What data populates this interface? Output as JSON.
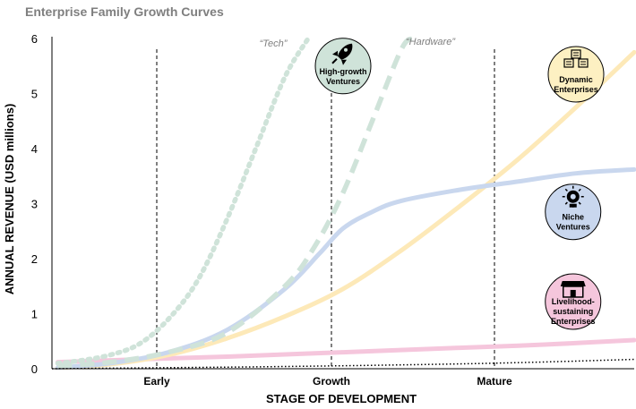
{
  "chart_data": {
    "type": "line",
    "title": "Enterprise Family Growth Curves",
    "xlabel": "STAGE OF DEVELOPMENT",
    "ylabel": "ANNUAL REVENUE (USD millions)",
    "ylim": [
      0,
      6
    ],
    "yticks": [
      "0",
      "1",
      "2",
      "3",
      "4",
      "5",
      "6"
    ],
    "xticks": [
      "Early",
      "Growth",
      "Mature"
    ],
    "xlim": [
      0,
      10
    ],
    "stage_dividers": [
      1.8,
      4.8,
      7.6
    ],
    "annotations": [
      "“Tech”",
      "“Hardware”"
    ],
    "grid": false,
    "series": [
      {
        "name": "High-growth Ventures",
        "style": "dotted",
        "color": "#cfe3d9",
        "x": [
          0.1,
          0.5,
          1.0,
          1.5,
          2.0,
          2.5,
          3.0,
          3.5,
          4.0,
          4.4
        ],
        "y": [
          0.1,
          0.15,
          0.25,
          0.45,
          0.9,
          1.6,
          2.7,
          4.0,
          5.3,
          6.0
        ]
      },
      {
        "name": "High-growth Ventures",
        "style": "dashed",
        "color": "#cfe3d9",
        "x": [
          0.1,
          1.0,
          2.0,
          3.0,
          4.0,
          4.5,
          5.0,
          5.5,
          6.0,
          6.2
        ],
        "y": [
          0.05,
          0.12,
          0.3,
          0.65,
          1.5,
          2.2,
          3.2,
          4.5,
          5.8,
          6.0
        ]
      },
      {
        "name": "Niche Ventures",
        "style": "solid",
        "color": "#c9d7ee",
        "x": [
          0.1,
          1.0,
          2.0,
          3.0,
          4.0,
          4.6,
          5.0,
          5.5,
          6.0,
          7.0,
          8.0,
          9.0,
          10.0
        ],
        "y": [
          0.02,
          0.1,
          0.3,
          0.7,
          1.45,
          2.1,
          2.55,
          2.85,
          3.05,
          3.25,
          3.4,
          3.55,
          3.62
        ]
      },
      {
        "name": "Dynamic Enterprises",
        "style": "solid",
        "color": "#fde9b8",
        "x": [
          0.1,
          1.0,
          2.0,
          3.0,
          4.0,
          5.0,
          6.0,
          7.0,
          8.0,
          9.0,
          10.0
        ],
        "y": [
          0.02,
          0.08,
          0.25,
          0.55,
          0.95,
          1.45,
          2.15,
          2.95,
          3.8,
          4.75,
          5.75
        ]
      },
      {
        "name": "Livelihood-sustaining Enterprises",
        "style": "solid",
        "color": "#f5c6dc",
        "x": [
          0.1,
          1.5,
          3.0,
          5.0,
          7.0,
          8.5,
          10.0
        ],
        "y": [
          0.12,
          0.17,
          0.22,
          0.3,
          0.38,
          0.44,
          0.52
        ]
      },
      {
        "name": "",
        "style": "fine-dotted",
        "color": "#000000",
        "x": [
          0.0,
          2.0,
          4.0,
          6.0,
          8.0,
          10.0
        ],
        "y": [
          0.0,
          0.02,
          0.04,
          0.07,
          0.11,
          0.17
        ]
      }
    ],
    "badges": [
      {
        "label": [
          "High-growth",
          "Ventures"
        ],
        "fill": "#cfe3d9",
        "icon": "rocket-icon",
        "x": 5.0,
        "y": 5.5
      },
      {
        "label": [
          "Dynamic",
          "Enterprises"
        ],
        "fill": "#fdf0c2",
        "icon": "buildings-icon",
        "x": 9.0,
        "y": 5.35
      },
      {
        "label": [
          "Niche",
          "Ventures"
        ],
        "fill": "#c9d7ee",
        "icon": "lightbulb-gear-icon",
        "x": 8.95,
        "y": 2.85
      },
      {
        "label": [
          "Livelihood-",
          "sustaining",
          "Enterprises"
        ],
        "fill": "#f5c6dc",
        "icon": "storefront-icon",
        "x": 8.95,
        "y": 1.22
      }
    ]
  }
}
